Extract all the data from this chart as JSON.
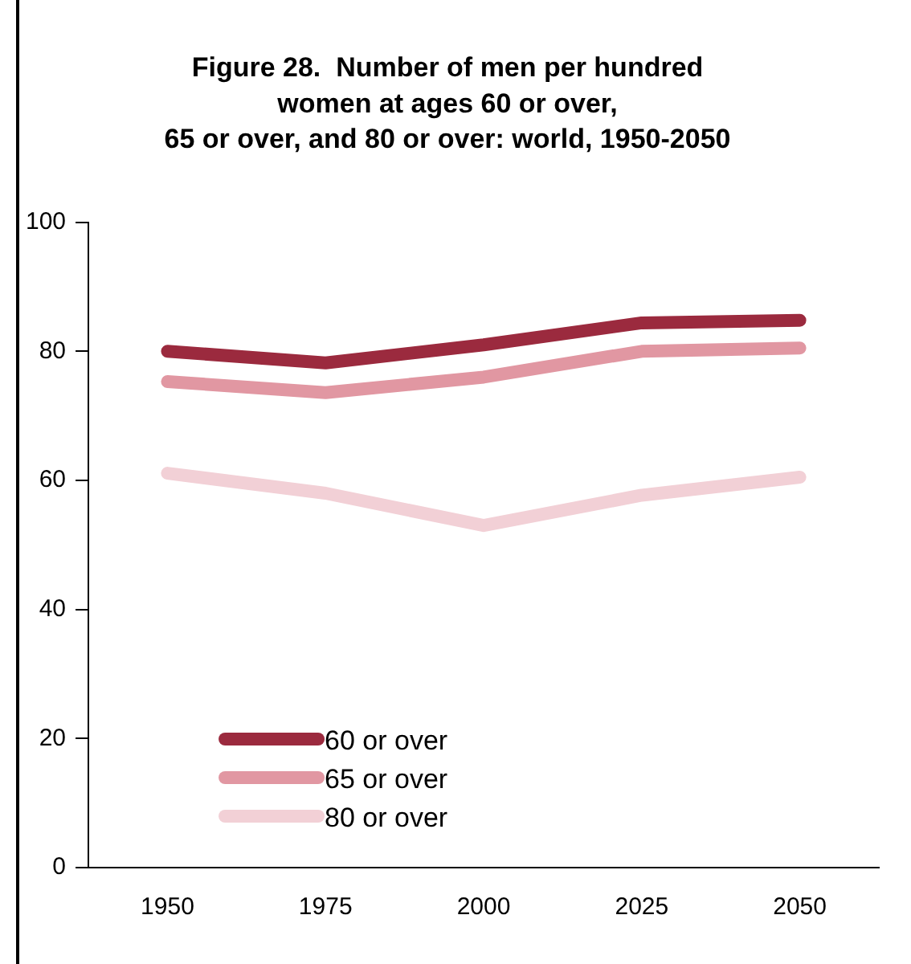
{
  "chart_data": {
    "type": "line",
    "title": "Figure 28.  Number of men per hundred\nwomen at ages 60 or over,\n65 or over, and 80 or over: world, 1950-2050",
    "categories": [
      "1950",
      "1975",
      "2000",
      "2025",
      "2050"
    ],
    "series": [
      {
        "name": "60 or over",
        "color": "#9b2a3e",
        "values": [
          80,
          78.2,
          81,
          84.4,
          84.8
        ]
      },
      {
        "name": "65 or over",
        "color": "#e197a2",
        "values": [
          75.3,
          73.6,
          76,
          80,
          80.5
        ]
      },
      {
        "name": "80 or over",
        "color": "#f2d0d6",
        "values": [
          61.1,
          58,
          53,
          57.7,
          60.5
        ]
      }
    ],
    "ylim": [
      0,
      100
    ],
    "yticks": [
      0,
      20,
      40,
      60,
      80,
      100
    ],
    "grid": false,
    "legend": "bottom left",
    "marker": "none",
    "line_style": "solid"
  }
}
